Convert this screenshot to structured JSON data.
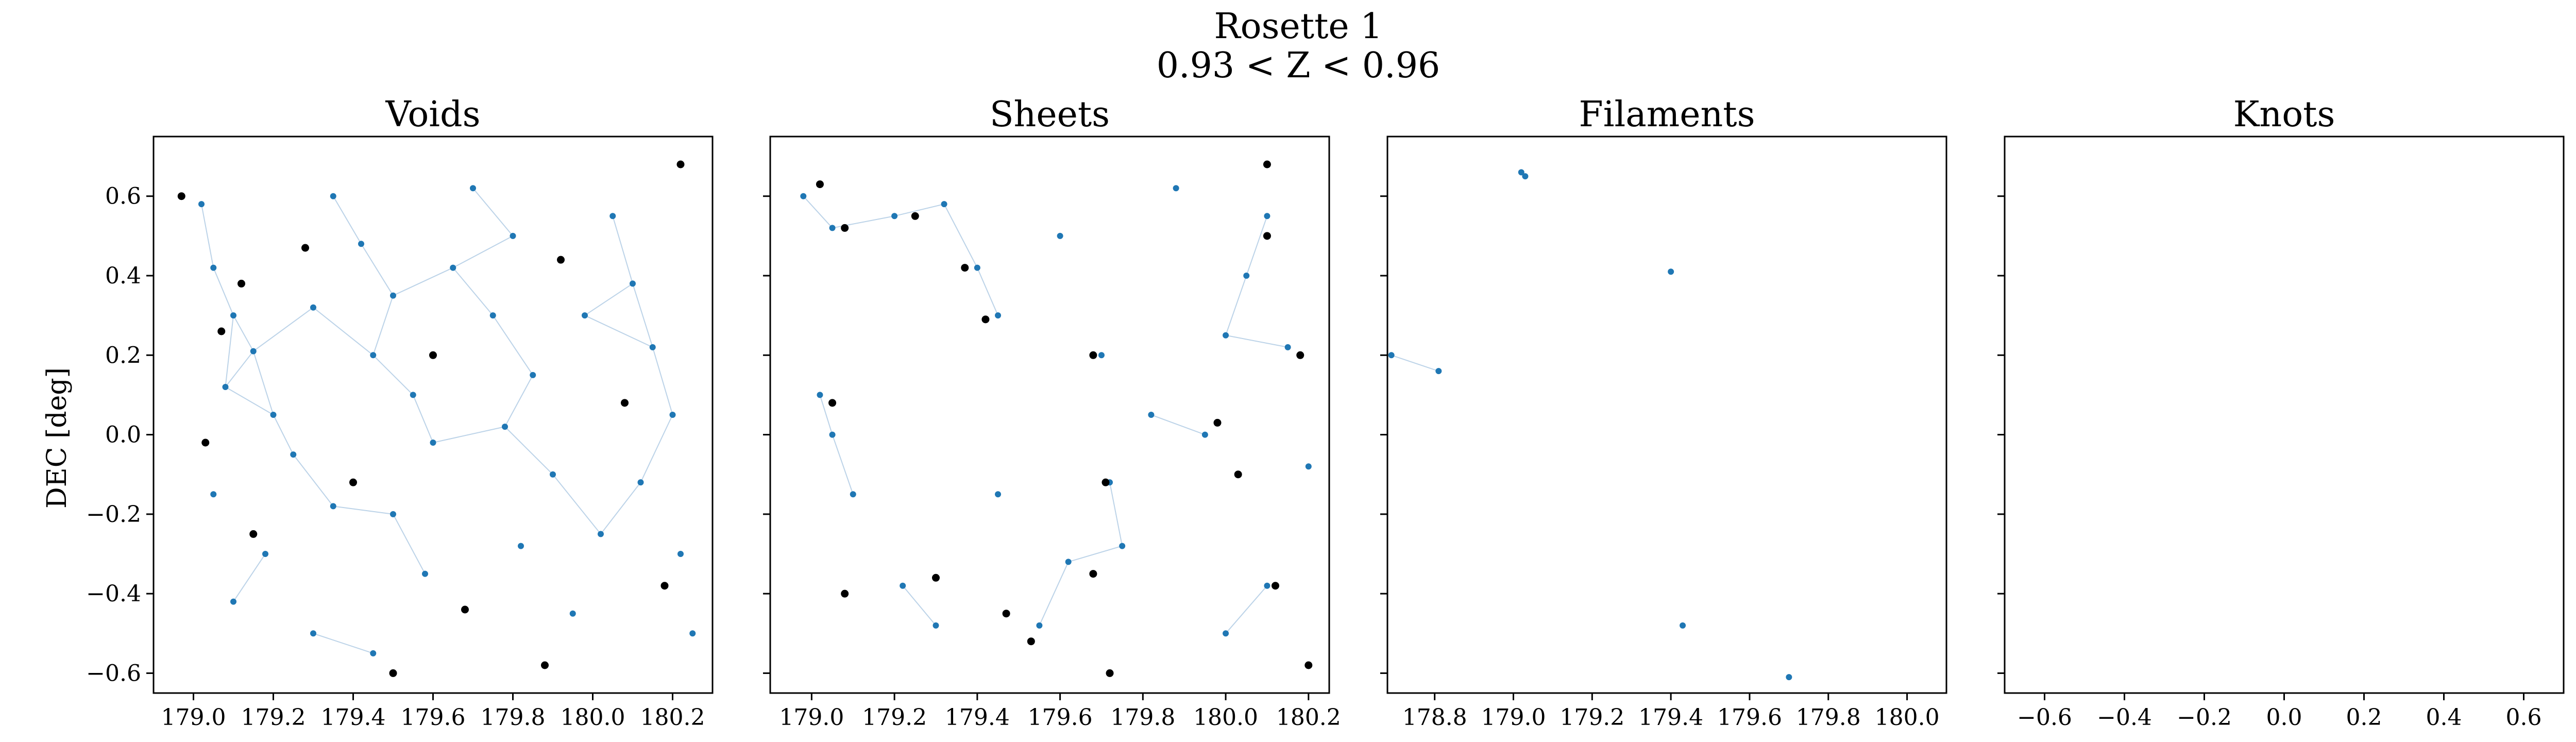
{
  "figure": {
    "title_line1": "Rosette 1",
    "title_line2": "0.93 < Z < 0.96",
    "ylabel": "DEC [deg]"
  },
  "colors": {
    "field": "#1f77b4",
    "highlight": "#000000",
    "edge": "#8fb6d9",
    "axes": "#000000"
  },
  "chart_data": [
    {
      "type": "scatter",
      "title": "Voids",
      "xlabel": "",
      "ylabel": "DEC [deg]",
      "xlim": [
        178.9,
        180.3
      ],
      "ylim": [
        -0.65,
        0.75
      ],
      "x_ticks": [
        179.0,
        179.2,
        179.4,
        179.6,
        179.8,
        180.0,
        180.2
      ],
      "x_tick_labels": [
        "179.0",
        "179.2",
        "179.4",
        "179.6",
        "179.8",
        "180.0",
        "180.2"
      ],
      "y_ticks": [
        -0.6,
        -0.4,
        -0.2,
        0.0,
        0.2,
        0.4,
        0.6
      ],
      "y_tick_labels": [
        "−0.6",
        "−0.4",
        "−0.2",
        "0.0",
        "0.2",
        "0.4",
        "0.6"
      ],
      "show_y_tick_labels": true,
      "series": [
        {
          "role": "field",
          "points": [
            [
              179.02,
              0.58
            ],
            [
              179.05,
              0.42
            ],
            [
              179.1,
              0.3
            ],
            [
              179.15,
              0.21
            ],
            [
              179.08,
              0.12
            ],
            [
              179.2,
              0.05
            ],
            [
              179.25,
              -0.05
            ],
            [
              179.05,
              -0.15
            ],
            [
              179.18,
              -0.3
            ],
            [
              179.1,
              -0.42
            ],
            [
              179.3,
              -0.5
            ],
            [
              179.35,
              0.6
            ],
            [
              179.42,
              0.48
            ],
            [
              179.5,
              0.35
            ],
            [
              179.45,
              0.2
            ],
            [
              179.55,
              0.1
            ],
            [
              179.6,
              -0.02
            ],
            [
              179.5,
              -0.2
            ],
            [
              179.58,
              -0.35
            ],
            [
              179.45,
              -0.55
            ],
            [
              179.7,
              0.62
            ],
            [
              179.8,
              0.5
            ],
            [
              179.75,
              0.3
            ],
            [
              179.85,
              0.15
            ],
            [
              179.78,
              0.02
            ],
            [
              179.9,
              -0.1
            ],
            [
              179.82,
              -0.28
            ],
            [
              179.95,
              -0.45
            ],
            [
              180.05,
              0.55
            ],
            [
              180.1,
              0.38
            ],
            [
              180.15,
              0.22
            ],
            [
              180.2,
              0.05
            ],
            [
              180.12,
              -0.12
            ],
            [
              180.22,
              -0.3
            ],
            [
              180.25,
              -0.5
            ],
            [
              179.3,
              0.32
            ],
            [
              179.35,
              -0.18
            ],
            [
              179.65,
              0.42
            ],
            [
              179.98,
              0.3
            ],
            [
              180.02,
              -0.25
            ]
          ]
        },
        {
          "role": "highlight",
          "points": [
            [
              178.97,
              0.6
            ],
            [
              179.07,
              0.26
            ],
            [
              179.03,
              -0.02
            ],
            [
              179.15,
              -0.25
            ],
            [
              179.28,
              0.47
            ],
            [
              179.4,
              -0.12
            ],
            [
              179.6,
              0.2
            ],
            [
              179.68,
              -0.44
            ],
            [
              179.92,
              0.44
            ],
            [
              180.08,
              0.08
            ],
            [
              180.18,
              -0.38
            ],
            [
              179.5,
              -0.6
            ],
            [
              179.88,
              -0.58
            ],
            [
              180.22,
              0.68
            ],
            [
              179.12,
              0.38
            ]
          ]
        }
      ]
    },
    {
      "type": "scatter",
      "title": "Sheets",
      "xlabel": "",
      "ylabel": "",
      "xlim": [
        178.9,
        180.25
      ],
      "ylim": [
        -0.65,
        0.75
      ],
      "x_ticks": [
        179.0,
        179.2,
        179.4,
        179.6,
        179.8,
        180.0,
        180.2
      ],
      "x_tick_labels": [
        "179.0",
        "179.2",
        "179.4",
        "179.6",
        "179.8",
        "180.0",
        "180.2"
      ],
      "y_ticks": [
        -0.6,
        -0.4,
        -0.2,
        0.0,
        0.2,
        0.4,
        0.6
      ],
      "y_tick_labels": [
        "",
        "",
        "",
        "",
        "",
        "",
        ""
      ],
      "show_y_tick_labels": false,
      "series": [
        {
          "role": "field",
          "points": [
            [
              178.98,
              0.6
            ],
            [
              179.05,
              0.52
            ],
            [
              179.2,
              0.55
            ],
            [
              179.32,
              0.58
            ],
            [
              179.4,
              0.42
            ],
            [
              179.45,
              0.3
            ],
            [
              179.02,
              0.1
            ],
            [
              179.05,
              0.0
            ],
            [
              179.1,
              -0.15
            ],
            [
              179.22,
              -0.38
            ],
            [
              179.3,
              -0.48
            ],
            [
              179.45,
              -0.15
            ],
            [
              179.62,
              -0.32
            ],
            [
              179.75,
              -0.28
            ],
            [
              179.72,
              -0.12
            ],
            [
              179.7,
              0.2
            ],
            [
              179.82,
              0.05
            ],
            [
              179.95,
              0.0
            ],
            [
              180.0,
              0.25
            ],
            [
              180.05,
              0.4
            ],
            [
              180.1,
              0.55
            ],
            [
              180.15,
              0.22
            ],
            [
              180.2,
              -0.08
            ],
            [
              180.1,
              -0.38
            ],
            [
              180.0,
              -0.5
            ],
            [
              179.55,
              -0.48
            ],
            [
              179.88,
              0.62
            ],
            [
              179.6,
              0.5
            ]
          ]
        },
        {
          "role": "highlight",
          "points": [
            [
              179.02,
              0.63
            ],
            [
              179.08,
              0.52
            ],
            [
              179.25,
              0.55
            ],
            [
              179.37,
              0.42
            ],
            [
              179.42,
              0.29
            ],
            [
              179.05,
              0.08
            ],
            [
              179.08,
              -0.4
            ],
            [
              179.3,
              -0.36
            ],
            [
              179.47,
              -0.45
            ],
            [
              179.68,
              -0.35
            ],
            [
              179.71,
              -0.12
            ],
            [
              179.68,
              0.2
            ],
            [
              179.98,
              0.03
            ],
            [
              180.03,
              -0.1
            ],
            [
              180.1,
              0.5
            ],
            [
              180.18,
              0.2
            ],
            [
              180.2,
              -0.58
            ],
            [
              179.72,
              -0.6
            ],
            [
              179.53,
              -0.52
            ],
            [
              180.12,
              -0.38
            ],
            [
              180.1,
              0.68
            ]
          ]
        }
      ]
    },
    {
      "type": "scatter",
      "title": "Filaments",
      "xlabel": "",
      "ylabel": "",
      "xlim": [
        178.68,
        180.1
      ],
      "ylim": [
        -0.65,
        0.75
      ],
      "x_ticks": [
        178.8,
        179.0,
        179.2,
        179.4,
        179.6,
        179.8,
        180.0
      ],
      "x_tick_labels": [
        "178.8",
        "179.0",
        "179.2",
        "179.4",
        "179.6",
        "179.8",
        "180.0"
      ],
      "y_ticks": [
        -0.6,
        -0.4,
        -0.2,
        0.0,
        0.2,
        0.4,
        0.6
      ],
      "y_tick_labels": [
        "",
        "",
        "",
        "",
        "",
        "",
        ""
      ],
      "show_y_tick_labels": false,
      "series": [
        {
          "role": "field",
          "points": [
            [
              179.02,
              0.66
            ],
            [
              179.03,
              0.65
            ],
            [
              179.4,
              0.41
            ],
            [
              178.69,
              0.2
            ],
            [
              178.81,
              0.16
            ],
            [
              179.43,
              -0.48
            ],
            [
              179.7,
              -0.61
            ]
          ]
        }
      ]
    },
    {
      "type": "scatter",
      "title": "Knots",
      "xlabel": "",
      "ylabel": "",
      "xlim": [
        -0.7,
        0.7
      ],
      "ylim": [
        -0.65,
        0.75
      ],
      "x_ticks": [
        -0.6,
        -0.4,
        -0.2,
        0.0,
        0.2,
        0.4,
        0.6
      ],
      "x_tick_labels": [
        "−0.6",
        "−0.4",
        "−0.2",
        "0.0",
        "0.2",
        "0.4",
        "0.6"
      ],
      "y_ticks": [
        -0.6,
        -0.4,
        -0.2,
        0.0,
        0.2,
        0.4,
        0.6
      ],
      "y_tick_labels": [
        "",
        "",
        "",
        "",
        "",
        "",
        ""
      ],
      "show_y_tick_labels": false,
      "series": []
    }
  ]
}
